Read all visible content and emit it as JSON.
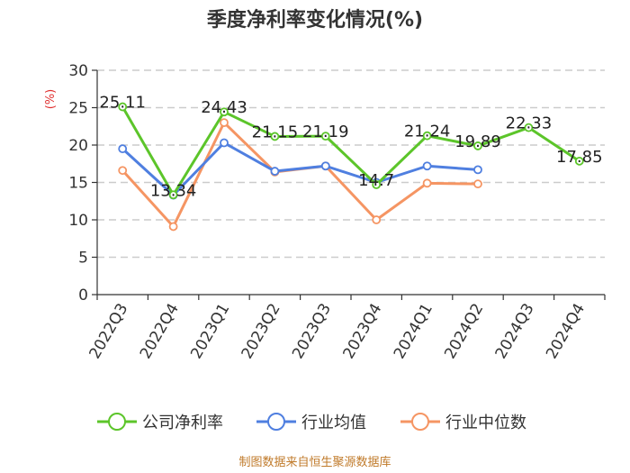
{
  "chart_data": {
    "type": "line",
    "title": "季度净利率变化情况(%)",
    "ylabel": "(%)",
    "ylim": [
      0,
      30
    ],
    "yticks": [
      0,
      5,
      10,
      15,
      20,
      25,
      30
    ],
    "categories": [
      "2022Q3",
      "2022Q4",
      "2023Q1",
      "2023Q2",
      "2023Q3",
      "2023Q4",
      "2024Q1",
      "2024Q2",
      "2024Q3",
      "2024Q4"
    ],
    "grid": true,
    "legend_position": "bottom",
    "series": [
      {
        "name": "公司净利率",
        "color": "#5cc52a",
        "values": [
          25.11,
          13.34,
          24.43,
          21.15,
          21.19,
          14.7,
          21.24,
          19.89,
          22.33,
          17.85
        ],
        "labels": [
          "25.11",
          "13.34",
          "24.43",
          "21.15",
          "21.19",
          "14.7",
          "21.24",
          "19.89",
          "22.33",
          "17.85"
        ]
      },
      {
        "name": "行业均值",
        "color": "#4f7fe0",
        "values": [
          19.5,
          13.3,
          20.3,
          16.5,
          17.2,
          15.0,
          17.2,
          16.7,
          null,
          null
        ]
      },
      {
        "name": "行业中位数",
        "color": "#f59563",
        "values": [
          16.6,
          9.1,
          23.0,
          16.4,
          17.2,
          10.0,
          14.9,
          14.8,
          null,
          null
        ]
      }
    ],
    "source": "制图数据来自恒生聚源数据库"
  }
}
